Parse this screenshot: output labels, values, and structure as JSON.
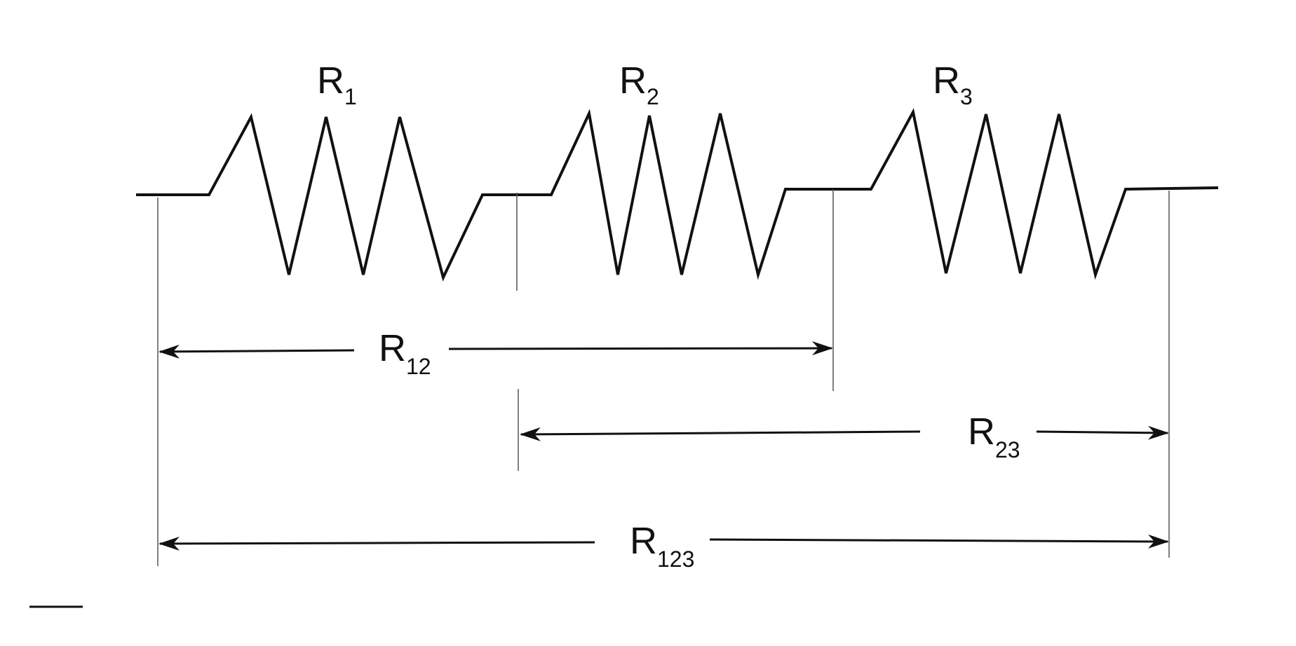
{
  "diagram": {
    "resistors": [
      {
        "symbol": "R",
        "subscript": "1"
      },
      {
        "symbol": "R",
        "subscript": "2"
      },
      {
        "symbol": "R",
        "subscript": "3"
      }
    ],
    "spans": [
      {
        "symbol": "R",
        "subscript": "12"
      },
      {
        "symbol": "R",
        "subscript": "23"
      },
      {
        "symbol": "R",
        "subscript": "123"
      }
    ],
    "colors": {
      "ink": "#111111",
      "guide": "#555555",
      "background": "#ffffff"
    }
  }
}
